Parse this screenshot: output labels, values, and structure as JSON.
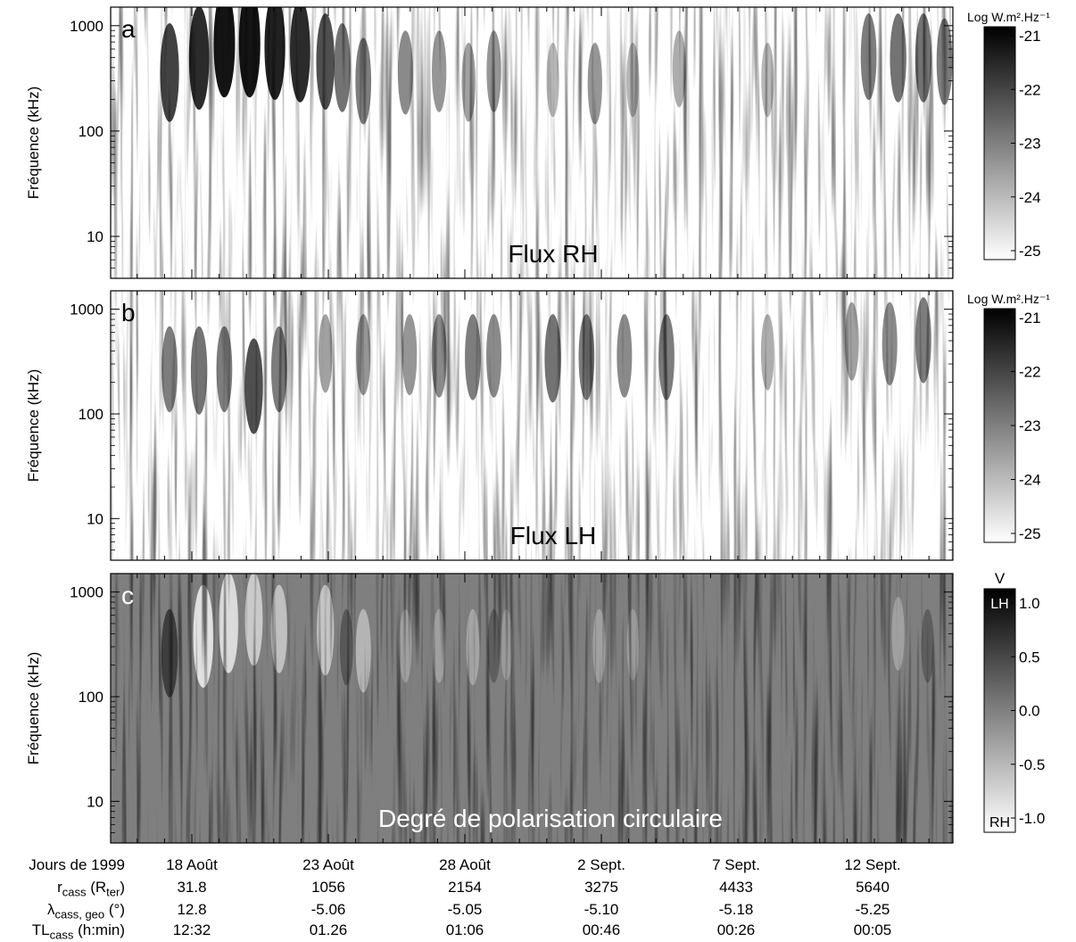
{
  "chart_data": [
    {
      "type": "heatmap",
      "panel": "a",
      "ylabel": "Fréquence (kHz)",
      "yscale": "log",
      "yticks": [
        "1000",
        "100",
        "10"
      ],
      "annotation": "Flux RH",
      "colorbar": {
        "title": "Log W.m².Hz⁻¹",
        "ticks": [
          "-21",
          "-22",
          "-23",
          "-24",
          "-25"
        ],
        "range": [
          -25,
          -20.7
        ]
      },
      "bursts": [
        [
          0.07,
          0.8,
          0.58
        ],
        [
          0.105,
          0.9,
          0.65
        ],
        [
          0.135,
          1.0,
          0.72
        ],
        [
          0.165,
          1.0,
          0.72
        ],
        [
          0.195,
          0.95,
          0.7
        ],
        [
          0.225,
          0.9,
          0.68
        ],
        [
          0.255,
          0.75,
          0.62
        ],
        [
          0.275,
          0.6,
          0.58
        ],
        [
          0.3,
          0.55,
          0.52
        ],
        [
          0.35,
          0.5,
          0.55
        ],
        [
          0.39,
          0.45,
          0.55
        ],
        [
          0.425,
          0.4,
          0.5
        ],
        [
          0.455,
          0.45,
          0.55
        ],
        [
          0.525,
          0.3,
          0.5
        ],
        [
          0.575,
          0.45,
          0.5
        ],
        [
          0.62,
          0.3,
          0.5
        ],
        [
          0.675,
          0.35,
          0.55
        ],
        [
          0.78,
          0.3,
          0.5
        ],
        [
          0.9,
          0.55,
          0.62
        ],
        [
          0.935,
          0.6,
          0.62
        ],
        [
          0.965,
          0.6,
          0.62
        ],
        [
          0.99,
          0.55,
          0.6
        ]
      ]
    },
    {
      "type": "heatmap",
      "panel": "b",
      "ylabel": "Fréquence (kHz)",
      "yscale": "log",
      "yticks": [
        "1000",
        "100",
        "10"
      ],
      "annotation": "Flux LH",
      "colorbar": {
        "title": "Log W.m².Hz⁻¹",
        "ticks": [
          "-21",
          "-22",
          "-23",
          "-24",
          "-25"
        ],
        "range": [
          -25,
          -20.7
        ]
      },
      "bursts": [
        [
          0.07,
          0.55,
          0.5
        ],
        [
          0.105,
          0.6,
          0.5
        ],
        [
          0.135,
          0.55,
          0.5
        ],
        [
          0.17,
          0.75,
          0.45
        ],
        [
          0.2,
          0.55,
          0.5
        ],
        [
          0.255,
          0.4,
          0.55
        ],
        [
          0.3,
          0.45,
          0.55
        ],
        [
          0.355,
          0.45,
          0.55
        ],
        [
          0.39,
          0.5,
          0.55
        ],
        [
          0.43,
          0.55,
          0.55
        ],
        [
          0.455,
          0.5,
          0.55
        ],
        [
          0.525,
          0.6,
          0.55
        ],
        [
          0.565,
          0.55,
          0.55
        ],
        [
          0.61,
          0.5,
          0.55
        ],
        [
          0.66,
          0.55,
          0.55
        ],
        [
          0.78,
          0.35,
          0.55
        ],
        [
          0.88,
          0.4,
          0.6
        ],
        [
          0.925,
          0.5,
          0.6
        ],
        [
          0.965,
          0.55,
          0.62
        ]
      ]
    },
    {
      "type": "heatmap",
      "panel": "c",
      "ylabel": "Fréquence (kHz)",
      "yscale": "log",
      "yticks": [
        "1000",
        "100",
        "10"
      ],
      "annotation": "Degré de polarisation circulaire",
      "colorbar": {
        "title": "V",
        "ticks": [
          "1.0",
          "0.5",
          "0.0",
          "-0.5",
          "-1.0"
        ],
        "range": [
          -1.0,
          1.0
        ],
        "top_label": "LH",
        "bottom_label": "RH"
      },
      "bursts": [
        [
          0.11,
          -0.9,
          0.6
        ],
        [
          0.14,
          -0.85,
          0.65
        ],
        [
          0.17,
          -0.7,
          0.65
        ],
        [
          0.2,
          -0.6,
          0.6
        ],
        [
          0.255,
          -0.65,
          0.6
        ],
        [
          0.3,
          -0.5,
          0.5
        ],
        [
          0.35,
          -0.3,
          0.5
        ],
        [
          0.39,
          -0.3,
          0.5
        ],
        [
          0.43,
          -0.35,
          0.5
        ],
        [
          0.47,
          -0.25,
          0.5
        ],
        [
          0.58,
          -0.3,
          0.5
        ],
        [
          0.62,
          -0.25,
          0.5
        ],
        [
          0.07,
          0.6,
          0.5
        ],
        [
          0.28,
          0.35,
          0.5
        ],
        [
          0.455,
          0.3,
          0.5
        ],
        [
          0.935,
          -0.3,
          0.55
        ],
        [
          0.97,
          0.3,
          0.5
        ]
      ]
    }
  ],
  "x_axis": {
    "label": "Jours de 1999",
    "ticks": [
      "18 Août",
      "23 Août",
      "28 Août",
      "2 Sept.",
      "7 Sept.",
      "12 Sept."
    ]
  },
  "table": {
    "rows": [
      {
        "label": "rcass (Rter)",
        "label_main": "r",
        "label_sub": "cass",
        "label_rest": " (R",
        "label_sub2": "ter",
        "label_end": ")",
        "values": [
          "31.8",
          "1056",
          "2154",
          "3275",
          "4433",
          "5640"
        ]
      },
      {
        "label": "λcass, geo (°)",
        "label_main": "λ",
        "label_sub": "cass, geo",
        "label_rest": " (°)",
        "label_sub2": "",
        "label_end": "",
        "values": [
          "12.8",
          "-5.06",
          "-5.05",
          "-5.10",
          "-5.18",
          "-5.25"
        ]
      },
      {
        "label": "TLcass (h:min)",
        "label_main": "TL",
        "label_sub": "cass",
        "label_rest": " (h:min)",
        "label_sub2": "",
        "label_end": "",
        "values": [
          "12:32",
          "01.26",
          "01:06",
          "00:46",
          "00:26",
          "00:05"
        ]
      }
    ]
  }
}
